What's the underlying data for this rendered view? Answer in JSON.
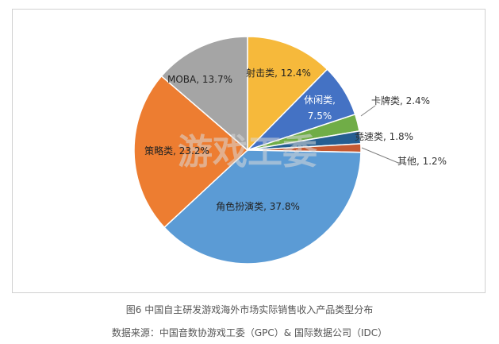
{
  "chart_data": {
    "type": "pie",
    "title": "",
    "slices": [
      {
        "label": "射击类",
        "text": "射击类, 12.4%",
        "value": 12.4,
        "color": "#F6B93B"
      },
      {
        "label": "休闲类",
        "text": "休闲类, 7.5%",
        "value": 7.5,
        "color": "#4472C4"
      },
      {
        "label": "卡牌类",
        "text": "卡牌类, 2.4%",
        "value": 2.4,
        "color": "#70AD47"
      },
      {
        "label": "竞速类",
        "text": "竞速类, 1.8%",
        "value": 1.8,
        "color": "#255E91"
      },
      {
        "label": "其他",
        "text": "其他, 1.2%",
        "value": 1.2,
        "color": "#C55A32"
      },
      {
        "label": "角色扮演类",
        "text": "角色扮演类, 37.8%",
        "value": 37.8,
        "color": "#5B9BD5"
      },
      {
        "label": "策略类",
        "text": "策略类, 23.2%",
        "value": 23.2,
        "color": "#ED7D31"
      },
      {
        "label": "MOBA",
        "text": "MOBA, 13.7%",
        "value": 13.7,
        "color": "#A5A5A5"
      }
    ],
    "watermark": "游戏工委"
  },
  "captions": {
    "figure": "图6 中国自主研发游戏海外市场实际销售收入产品类型分布",
    "source": "数据来源：中国音数协游戏工委（GPC）& 国际数据公司（IDC）"
  }
}
